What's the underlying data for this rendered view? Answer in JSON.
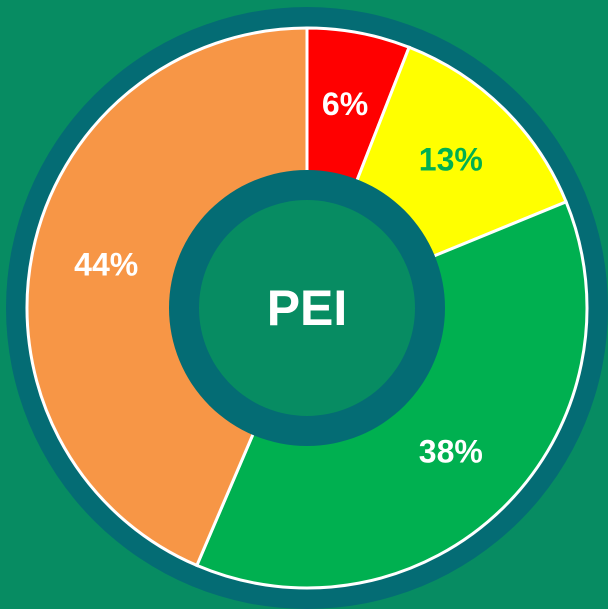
{
  "chart_data": {
    "type": "donut",
    "center_label": "PEI",
    "categories": [
      null,
      null,
      null,
      null
    ],
    "values": [
      6,
      13,
      38,
      44
    ],
    "value_labels": [
      "6%",
      "13%",
      "38%",
      "44%"
    ],
    "colors": [
      "#ff0000",
      "#ffff00",
      "#00b050",
      "#f79646"
    ],
    "label_colors": [
      "#ffffff",
      "#00b050",
      "#ffffff",
      "#ffffff"
    ]
  }
}
